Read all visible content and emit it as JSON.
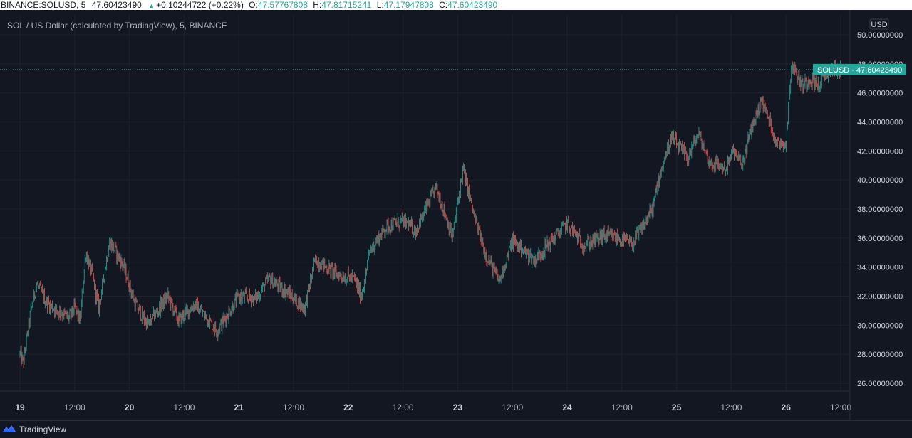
{
  "header": {
    "symbol": "BINANCE:SOLUSD, 5",
    "last": "47.60423490",
    "change": "+0.10244722 (+0.22%)",
    "open_label": "O:",
    "open": "47.57767808",
    "high_label": "H:",
    "high": "47.81715241",
    "low_label": "L:",
    "low": "47.17947808",
    "close_label": "C:",
    "close": "47.60423490"
  },
  "subtitle": "SOL / US Dollar (calculated by TradingView), 5, BINANCE",
  "price_axis": {
    "currency": "USD",
    "ticks": [
      "50.00000000",
      "48.00000000",
      "46.00000000",
      "44.00000000",
      "42.00000000",
      "40.00000000",
      "38.00000000",
      "36.00000000",
      "34.00000000",
      "32.00000000",
      "30.00000000",
      "28.00000000",
      "26.00000000"
    ]
  },
  "current_price_tag": "SOLUSD · 47.60423490",
  "time_axis": {
    "labels": [
      {
        "text": "19",
        "bold": true
      },
      {
        "text": "12:00",
        "bold": false
      },
      {
        "text": "20",
        "bold": true
      },
      {
        "text": "12:00",
        "bold": false
      },
      {
        "text": "21",
        "bold": true
      },
      {
        "text": "12:00",
        "bold": false
      },
      {
        "text": "22",
        "bold": true
      },
      {
        "text": "12:00",
        "bold": false
      },
      {
        "text": "23",
        "bold": true
      },
      {
        "text": "12:00",
        "bold": false
      },
      {
        "text": "24",
        "bold": true
      },
      {
        "text": "12:00",
        "bold": false
      },
      {
        "text": "25",
        "bold": true
      },
      {
        "text": "12:00",
        "bold": false
      },
      {
        "text": "26",
        "bold": true
      },
      {
        "text": "12:00",
        "bold": false
      }
    ]
  },
  "footer": {
    "brand": "TradingView"
  },
  "colors": {
    "background": "#131722",
    "up": "#26a69a",
    "down": "#ef5350",
    "grid": "#1e222d"
  },
  "chart_data": {
    "type": "candlestick",
    "x_unit": "time (days, 5-minute candles)",
    "y_range": [
      25,
      51
    ],
    "last_price": 47.6042349,
    "price_path": [
      {
        "day": 19.0,
        "price": 28.0
      },
      {
        "day": 19.03,
        "price": 27.4
      },
      {
        "day": 19.1,
        "price": 31.0
      },
      {
        "day": 19.15,
        "price": 32.8
      },
      {
        "day": 19.25,
        "price": 31.5
      },
      {
        "day": 19.45,
        "price": 30.5
      },
      {
        "day": 19.5,
        "price": 31.2
      },
      {
        "day": 19.55,
        "price": 30.3
      },
      {
        "day": 19.6,
        "price": 35.0
      },
      {
        "day": 19.65,
        "price": 33.8
      },
      {
        "day": 19.72,
        "price": 31.2
      },
      {
        "day": 19.82,
        "price": 35.8
      },
      {
        "day": 19.95,
        "price": 34.0
      },
      {
        "day": 20.05,
        "price": 31.5
      },
      {
        "day": 20.17,
        "price": 30.0
      },
      {
        "day": 20.35,
        "price": 32.0
      },
      {
        "day": 20.45,
        "price": 30.3
      },
      {
        "day": 20.6,
        "price": 31.5
      },
      {
        "day": 20.8,
        "price": 29.6
      },
      {
        "day": 21.0,
        "price": 32.0
      },
      {
        "day": 21.15,
        "price": 31.8
      },
      {
        "day": 21.28,
        "price": 33.2
      },
      {
        "day": 21.45,
        "price": 32.2
      },
      {
        "day": 21.6,
        "price": 31.2
      },
      {
        "day": 21.7,
        "price": 34.5
      },
      {
        "day": 21.9,
        "price": 33.5
      },
      {
        "day": 22.05,
        "price": 33.2
      },
      {
        "day": 22.12,
        "price": 32.0
      },
      {
        "day": 22.2,
        "price": 35.2
      },
      {
        "day": 22.35,
        "price": 36.8
      },
      {
        "day": 22.5,
        "price": 37.2
      },
      {
        "day": 22.62,
        "price": 36.5
      },
      {
        "day": 22.8,
        "price": 39.5
      },
      {
        "day": 22.88,
        "price": 37.8
      },
      {
        "day": 22.95,
        "price": 36.0
      },
      {
        "day": 23.05,
        "price": 40.8
      },
      {
        "day": 23.15,
        "price": 37.5
      },
      {
        "day": 23.25,
        "price": 35.0
      },
      {
        "day": 23.38,
        "price": 33.0
      },
      {
        "day": 23.5,
        "price": 35.8
      },
      {
        "day": 23.7,
        "price": 34.5
      },
      {
        "day": 24.0,
        "price": 37.0
      },
      {
        "day": 24.15,
        "price": 35.5
      },
      {
        "day": 24.35,
        "price": 36.2
      },
      {
        "day": 24.6,
        "price": 35.6
      },
      {
        "day": 24.78,
        "price": 38.0
      },
      {
        "day": 24.85,
        "price": 40.5
      },
      {
        "day": 24.95,
        "price": 43.0
      },
      {
        "day": 25.1,
        "price": 41.5
      },
      {
        "day": 25.2,
        "price": 43.2
      },
      {
        "day": 25.3,
        "price": 41.2
      },
      {
        "day": 25.45,
        "price": 40.8
      },
      {
        "day": 25.52,
        "price": 42.0
      },
      {
        "day": 25.6,
        "price": 41.0
      },
      {
        "day": 25.68,
        "price": 43.5
      },
      {
        "day": 25.78,
        "price": 45.5
      },
      {
        "day": 25.85,
        "price": 44.0
      },
      {
        "day": 25.92,
        "price": 42.5
      },
      {
        "day": 26.0,
        "price": 42.5
      },
      {
        "day": 26.05,
        "price": 48.0
      },
      {
        "day": 26.15,
        "price": 46.5
      },
      {
        "day": 26.22,
        "price": 47.0
      },
      {
        "day": 26.3,
        "price": 46.5
      },
      {
        "day": 26.4,
        "price": 47.6
      },
      {
        "day": 26.5,
        "price": 47.6
      }
    ]
  }
}
